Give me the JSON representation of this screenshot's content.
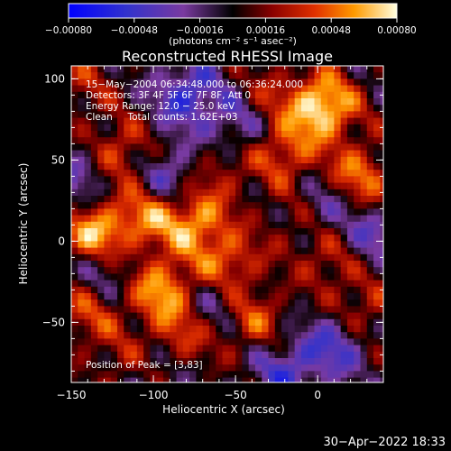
{
  "chart_data": {
    "type": "heatmap",
    "title": "Reconstructed RHESSI Image",
    "xlabel": "Heliocentric X (arcsec)",
    "ylabel": "Heliocentric Y (arcsec)",
    "xlim": [
      -150,
      40
    ],
    "ylim": [
      -87,
      108
    ],
    "xticks": [
      -150,
      -100,
      -50,
      0
    ],
    "xtick_labels": [
      "−150",
      "−100",
      "−50",
      "0"
    ],
    "yticks": [
      -50,
      0,
      50,
      100
    ],
    "ytick_labels": [
      "−50",
      "0",
      "50",
      "100"
    ],
    "colorbar": {
      "range": [
        -0.0008,
        0.0008
      ],
      "ticks": [
        -0.0008,
        -0.00048,
        -0.00016,
        0.00016,
        0.00048,
        0.0008
      ],
      "tick_labels": [
        "−0.00080",
        "−0.00048",
        "−0.00016",
        "0.00016",
        "0.00048",
        "0.00080"
      ],
      "unit_label": "(photons cm⁻² s⁻¹ asec⁻²)"
    },
    "annotations": [
      "15−May−2004 06:34:48.000 to 06:36:24.000",
      "Detectors: 3F 4F 5F 6F 7F 8F, Att 0",
      "Energy Range: 12.0 − 25.0 keV",
      "Clean     Total counts: 1.62E+03"
    ],
    "peak_label": "Position of Peak = [3,83]",
    "peak": [
      3,
      83
    ],
    "hotspots": [
      {
        "x": 3,
        "y": 83,
        "v": 0.0008
      },
      {
        "x": -135,
        "y": 3,
        "v": 0.00072
      },
      {
        "x": -95,
        "y": -30,
        "v": 0.0006
      },
      {
        "x": -75,
        "y": 12,
        "v": 0.00058
      },
      {
        "x": -55,
        "y": -15,
        "v": 0.00052
      },
      {
        "x": -105,
        "y": 15,
        "v": 0.00048
      },
      {
        "x": -20,
        "y": 55,
        "v": 0.00045
      },
      {
        "x": 25,
        "y": 40,
        "v": 0.0005
      },
      {
        "x": -120,
        "y": 55,
        "v": 0.0004
      },
      {
        "x": -40,
        "y": -48,
        "v": 0.00042
      },
      {
        "x": -85,
        "y": -60,
        "v": 0.00038
      },
      {
        "x": -140,
        "y": -45,
        "v": 0.00035
      },
      {
        "x": 10,
        "y": -10,
        "v": 0.00036
      },
      {
        "x": -10,
        "y": 15,
        "v": 0.00034
      },
      {
        "x": 30,
        "y": -40,
        "v": 0.0003
      },
      {
        "x": -60,
        "y": 45,
        "v": 0.0003
      },
      {
        "x": -115,
        "y": -75,
        "v": 0.00028
      },
      {
        "x": -30,
        "y": 90,
        "v": 0.00022
      },
      {
        "x": -145,
        "y": 95,
        "v": 0.00025
      }
    ],
    "coldspots": [
      {
        "x": -80,
        "y": 90,
        "v": -0.0005
      },
      {
        "x": 0,
        "y": 20,
        "v": -0.00045
      },
      {
        "x": -20,
        "y": -80,
        "v": -0.0004
      },
      {
        "x": -90,
        "y": 40,
        "v": -0.0004
      },
      {
        "x": 30,
        "y": 0,
        "v": -0.00038
      },
      {
        "x": -130,
        "y": -15,
        "v": -0.00035
      },
      {
        "x": -60,
        "y": -35,
        "v": -0.00035
      },
      {
        "x": 10,
        "y": -65,
        "v": -0.0004
      },
      {
        "x": -145,
        "y": 40,
        "v": -0.0003
      },
      {
        "x": -50,
        "y": 70,
        "v": -0.00035
      },
      {
        "x": -100,
        "y": -75,
        "v": -0.00028
      }
    ]
  },
  "footer": {
    "timestamp": "30−Apr−2022 18:33"
  }
}
